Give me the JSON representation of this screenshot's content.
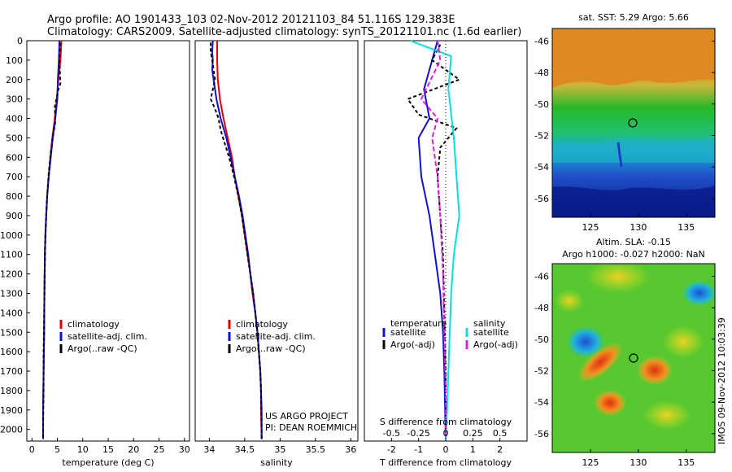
{
  "header": {
    "line1": "Argo profile: AO 1901433_103 02-Nov-2012 20121103_84 51.116S 129.383E",
    "line2": "Climatology: CARS2009. Satellite-adjusted climatology: synTS_20121101.nc (1.6d earlier)"
  },
  "colors": {
    "climatology": "#e00000",
    "satellite": "#1010d0",
    "argo": "#000000",
    "sal_satellite": "#00e0e0",
    "sal_argo": "#e020e0"
  },
  "chart_data": [
    {
      "id": "temp",
      "type": "line",
      "xlabel": "temperature (deg C)",
      "ylabel": "",
      "xlim": [
        -1,
        31
      ],
      "ylim": [
        2060,
        0
      ],
      "xticks": [
        0,
        5,
        10,
        15,
        20,
        25,
        30
      ],
      "yticks": [
        0,
        100,
        200,
        300,
        400,
        500,
        600,
        700,
        800,
        900,
        1000,
        1100,
        1200,
        1300,
        1400,
        1500,
        1600,
        1700,
        1800,
        1900,
        2000
      ],
      "legend_position": "lower-middle",
      "series": [
        {
          "name": "climatology",
          "color": "#e00000",
          "dash": "",
          "points": [
            [
              5.8,
              0
            ],
            [
              5.6,
              100
            ],
            [
              5.2,
              200
            ],
            [
              4.9,
              300
            ],
            [
              4.5,
              400
            ],
            [
              4.0,
              500
            ],
            [
              3.6,
              600
            ],
            [
              3.3,
              700
            ],
            [
              3.0,
              800
            ],
            [
              2.8,
              900
            ],
            [
              2.65,
              1000
            ],
            [
              2.55,
              1100
            ],
            [
              2.5,
              1200
            ],
            [
              2.45,
              1300
            ],
            [
              2.4,
              1500
            ],
            [
              2.3,
              1700
            ],
            [
              2.2,
              1900
            ],
            [
              2.2,
              2050
            ]
          ]
        },
        {
          "name": "satellite-adj. clim.",
          "color": "#1010d0",
          "dash": "",
          "points": [
            [
              5.4,
              0
            ],
            [
              5.3,
              100
            ],
            [
              5.1,
              200
            ],
            [
              5.0,
              300
            ],
            [
              4.6,
              400
            ],
            [
              4.1,
              500
            ],
            [
              3.7,
              600
            ],
            [
              3.3,
              700
            ],
            [
              3.0,
              800
            ],
            [
              2.8,
              900
            ],
            [
              2.65,
              1000
            ],
            [
              2.55,
              1100
            ],
            [
              2.5,
              1200
            ],
            [
              2.45,
              1300
            ],
            [
              2.4,
              1500
            ],
            [
              2.3,
              1700
            ],
            [
              2.2,
              1900
            ],
            [
              2.2,
              2050
            ]
          ]
        },
        {
          "name": "Argo(..raw -QC)",
          "color": "#000000",
          "dash": "4,3",
          "points": [
            [
              5.6,
              10
            ],
            [
              5.4,
              100
            ],
            [
              5.6,
              220
            ],
            [
              5.2,
              250
            ],
            [
              4.5,
              340
            ],
            [
              4.6,
              420
            ],
            [
              4.2,
              480
            ],
            [
              3.8,
              560
            ],
            [
              3.3,
              680
            ],
            [
              3.0,
              800
            ],
            [
              2.8,
              900
            ],
            [
              2.6,
              1050
            ],
            [
              2.5,
              1200
            ],
            [
              2.4,
              1400
            ],
            [
              2.3,
              1600
            ],
            [
              2.3,
              1800
            ],
            [
              2.2,
              2000
            ],
            [
              2.2,
              2050
            ]
          ]
        }
      ]
    },
    {
      "id": "sal",
      "type": "line",
      "xlabel": "salinity",
      "ylabel": "",
      "xlim": [
        33.8,
        36.1
      ],
      "ylim": [
        2060,
        0
      ],
      "xticks": [
        34,
        34.5,
        35,
        35.5,
        36
      ],
      "xtick_labels": [
        "34",
        "34.5",
        "35",
        "35.5",
        "36"
      ],
      "legend_position": "lower-middle",
      "series": [
        {
          "name": "climatology",
          "color": "#e00000",
          "dash": "",
          "points": [
            [
              34.11,
              0
            ],
            [
              34.11,
              100
            ],
            [
              34.12,
              200
            ],
            [
              34.15,
              300
            ],
            [
              34.2,
              400
            ],
            [
              34.26,
              500
            ],
            [
              34.32,
              600
            ],
            [
              34.36,
              700
            ],
            [
              34.41,
              800
            ],
            [
              34.46,
              900
            ],
            [
              34.5,
              1000
            ],
            [
              34.54,
              1100
            ],
            [
              34.58,
              1200
            ],
            [
              34.61,
              1300
            ],
            [
              34.65,
              1400
            ],
            [
              34.68,
              1500
            ],
            [
              34.7,
              1600
            ],
            [
              34.72,
              1700
            ],
            [
              34.73,
              1800
            ],
            [
              34.73,
              1900
            ],
            [
              34.74,
              2050
            ]
          ]
        },
        {
          "name": "satellite-adj. clim.",
          "color": "#1010d0",
          "dash": "",
          "points": [
            [
              34.05,
              0
            ],
            [
              34.04,
              60
            ],
            [
              34.05,
              100
            ],
            [
              34.04,
              150
            ],
            [
              34.06,
              200
            ],
            [
              34.1,
              300
            ],
            [
              34.16,
              400
            ],
            [
              34.24,
              500
            ],
            [
              34.3,
              600
            ],
            [
              34.36,
              700
            ],
            [
              34.42,
              800
            ],
            [
              34.47,
              900
            ],
            [
              34.51,
              1000
            ],
            [
              34.55,
              1100
            ],
            [
              34.58,
              1200
            ],
            [
              34.62,
              1300
            ],
            [
              34.65,
              1400
            ],
            [
              34.68,
              1500
            ],
            [
              34.7,
              1600
            ],
            [
              34.72,
              1700
            ],
            [
              34.73,
              1800
            ],
            [
              34.74,
              1900
            ],
            [
              34.74,
              2050
            ]
          ]
        },
        {
          "name": "Argo(..raw -QC)",
          "color": "#000000",
          "dash": "4,3",
          "points": [
            [
              34.02,
              10
            ],
            [
              34.02,
              60
            ],
            [
              34.04,
              100
            ],
            [
              34.08,
              200
            ],
            [
              34.02,
              300
            ],
            [
              34.08,
              350
            ],
            [
              34.13,
              400
            ],
            [
              34.16,
              460
            ],
            [
              34.21,
              520
            ],
            [
              34.28,
              600
            ],
            [
              34.35,
              700
            ],
            [
              34.41,
              800
            ],
            [
              34.46,
              900
            ],
            [
              34.5,
              1000
            ],
            [
              34.54,
              1100
            ],
            [
              34.58,
              1200
            ],
            [
              34.62,
              1300
            ],
            [
              34.65,
              1400
            ],
            [
              34.68,
              1500
            ],
            [
              34.7,
              1600
            ],
            [
              34.72,
              1700
            ],
            [
              34.73,
              1800
            ],
            [
              34.74,
              2000
            ],
            [
              34.74,
              2050
            ]
          ]
        }
      ],
      "annotations": [
        "US ARGO PROJECT",
        "PI: DEAN ROEMMICH"
      ]
    },
    {
      "id": "diff",
      "type": "line",
      "xlabel": "T difference from climatology",
      "xlabel_top": "S difference from climatology",
      "ylabel": "",
      "xlim": [
        -3,
        3
      ],
      "ylim": [
        2060,
        0
      ],
      "xticks": [
        -2,
        -1,
        0,
        1,
        2
      ],
      "top_ticks": [
        "-0.5",
        "-0.25",
        "0",
        "0.25",
        "0.5"
      ],
      "legend_position": "lower-middle",
      "legend_groups": [
        "temperature",
        "salinity"
      ],
      "series": [
        {
          "name": "satellite",
          "group": "temperature",
          "color": "#1010d0",
          "dash": "",
          "points": [
            [
              -0.3,
              0
            ],
            [
              -0.5,
              100
            ],
            [
              -0.8,
              250
            ],
            [
              -0.6,
              400
            ],
            [
              -1.0,
              500
            ],
            [
              -0.9,
              700
            ],
            [
              -0.6,
              900
            ],
            [
              -0.4,
              1100
            ],
            [
              -0.2,
              1300
            ],
            [
              -0.1,
              1500
            ],
            [
              -0.05,
              1700
            ],
            [
              0,
              2050
            ]
          ]
        },
        {
          "name": "Argo(-adj)",
          "group": "temperature",
          "color": "#000000",
          "dash": "4,3",
          "points": [
            [
              -0.2,
              20
            ],
            [
              -0.5,
              100
            ],
            [
              0.5,
              200
            ],
            [
              -1.4,
              300
            ],
            [
              -1.0,
              380
            ],
            [
              0.4,
              450
            ],
            [
              -0.2,
              550
            ],
            [
              -0.3,
              700
            ],
            [
              -0.2,
              900
            ],
            [
              -0.1,
              1100
            ],
            [
              -0.05,
              1400
            ],
            [
              0,
              1700
            ],
            [
              0,
              2050
            ]
          ]
        },
        {
          "name": "satellite",
          "group": "salinity",
          "color": "#00e0e0",
          "dash": "",
          "points": [
            [
              -1.3,
              0
            ],
            [
              0.2,
              80
            ],
            [
              0.1,
              250
            ],
            [
              0.3,
              500
            ],
            [
              0.4,
              700
            ],
            [
              0.5,
              900
            ],
            [
              0.3,
              1100
            ],
            [
              0.2,
              1300
            ],
            [
              0.15,
              1500
            ],
            [
              0.1,
              1700
            ],
            [
              0.05,
              1900
            ],
            [
              0,
              2050
            ]
          ]
        },
        {
          "name": "Argo(-adj)",
          "group": "salinity",
          "color": "#e020e0",
          "dash": "6,3",
          "points": [
            [
              -0.3,
              0
            ],
            [
              -0.2,
              100
            ],
            [
              -0.9,
              300
            ],
            [
              -0.3,
              400
            ],
            [
              -0.5,
              500
            ],
            [
              -0.3,
              700
            ],
            [
              -0.2,
              900
            ],
            [
              -0.1,
              1200
            ],
            [
              -0.05,
              1500
            ],
            [
              0,
              1800
            ],
            [
              0,
              2050
            ]
          ]
        }
      ]
    },
    {
      "id": "sst_map",
      "type": "heatmap",
      "title": "sat. SST: 5.29 Argo: 5.66",
      "xticks": [
        125,
        130,
        135
      ],
      "yticks": [
        -46,
        -48,
        -50,
        -52,
        -54,
        -56
      ],
      "xlim": [
        121,
        138
      ],
      "ylim": [
        -57.2,
        -45.2
      ],
      "marker": {
        "lon": 129.383,
        "lat": -51.116
      }
    },
    {
      "id": "sla_map",
      "type": "heatmap",
      "title": "Altim. SLA: -0.15",
      "subtitle": "Argo h1000: -0.027 h2000: NaN",
      "xticks": [
        125,
        130,
        135
      ],
      "yticks": [
        -46,
        -48,
        -50,
        -52,
        -54,
        -56
      ],
      "xlim": [
        121,
        138
      ],
      "ylim": [
        -57.2,
        -45.2
      ],
      "marker": {
        "lon": 129.383,
        "lat": -51.116
      }
    }
  ],
  "side_stamp": "IMOS 09-Nov-2012 10:03:39"
}
